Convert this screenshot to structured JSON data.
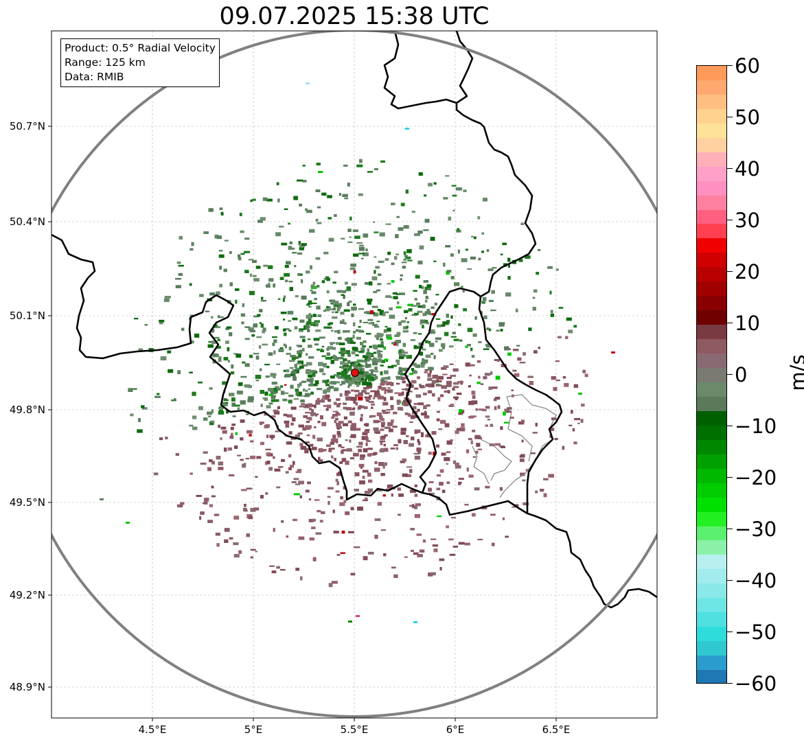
{
  "title": "09.07.2025 15:38 UTC",
  "info": {
    "product": "Product: 0.5° Radial Velocity",
    "range": "Range: 125 km",
    "data": "Data: RMIB"
  },
  "axes": {
    "lat_ticks": [
      "50.7°N",
      "50.4°N",
      "50.1°N",
      "49.8°N",
      "49.5°N",
      "49.2°N",
      "48.9°N"
    ],
    "lon_ticks": [
      "4.5°E",
      "5°E",
      "5.5°E",
      "6°E",
      "6.5°E"
    ]
  },
  "colorbar": {
    "unit": "m/s",
    "min": -60,
    "max": 60,
    "ticks": [
      "60",
      "50",
      "40",
      "30",
      "20",
      "10",
      "0",
      "−10",
      "−20",
      "−30",
      "−40",
      "−50",
      "−60"
    ],
    "colors": [
      "#1f77b4",
      "#2a9dcc",
      "#30c8d0",
      "#2fdcdc",
      "#4fe0e0",
      "#6ee6e6",
      "#8ae9e8",
      "#a2eced",
      "#b8f0f0",
      "#8cf0a8",
      "#5cf070",
      "#22f022",
      "#00e000",
      "#00cc00",
      "#00b800",
      "#00a000",
      "#008800",
      "#007000",
      "#006000",
      "#5a7a5a",
      "#6a8a6a",
      "#7a7a72",
      "#8a6a72",
      "#905a62",
      "#7a3a42",
      "#700000",
      "#880000",
      "#a00000",
      "#b80000",
      "#d00000",
      "#f00000",
      "#ff4050",
      "#ff6080",
      "#ff80a0",
      "#ff90c0",
      "#ffa0c8",
      "#ffb0b8",
      "#ffd0a0",
      "#ffe29a",
      "#ffd290",
      "#ffbf80",
      "#ffa870",
      "#ff9a5a"
    ]
  },
  "colors": {
    "range_ring": "#808080",
    "border": "#000000",
    "minor_border": "#808080",
    "radar_site": "#e00000",
    "outbound": "#8a5a66",
    "inbound": "#5e8262"
  }
}
